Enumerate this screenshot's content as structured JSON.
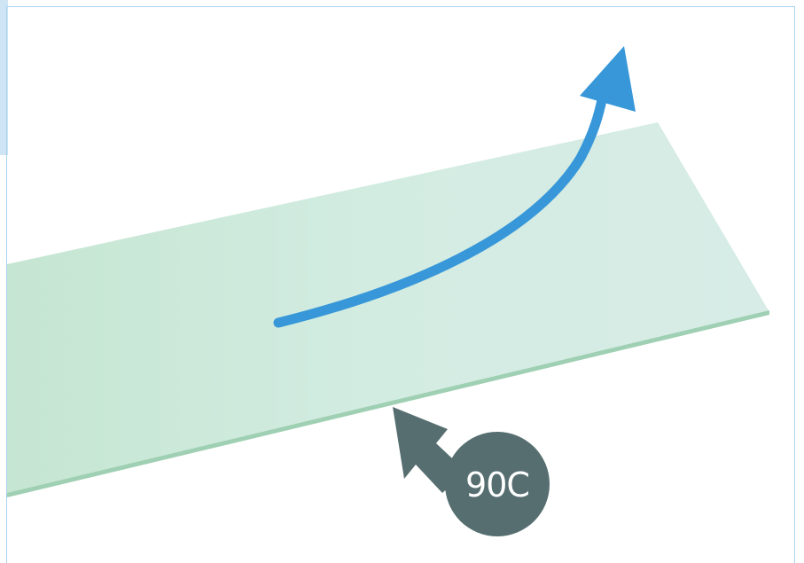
{
  "callout": {
    "label": "90C",
    "color": "#566e70"
  },
  "arrow": {
    "color": "#3797d8"
  },
  "sheet": {
    "face_color_light": "#d5ebe3",
    "face_color_dark": "#c5e6d2",
    "edge_color": "#9fd0b3"
  },
  "frame": {
    "border_color": "#a9d3ee",
    "tab_color": "#cfe5f5"
  }
}
